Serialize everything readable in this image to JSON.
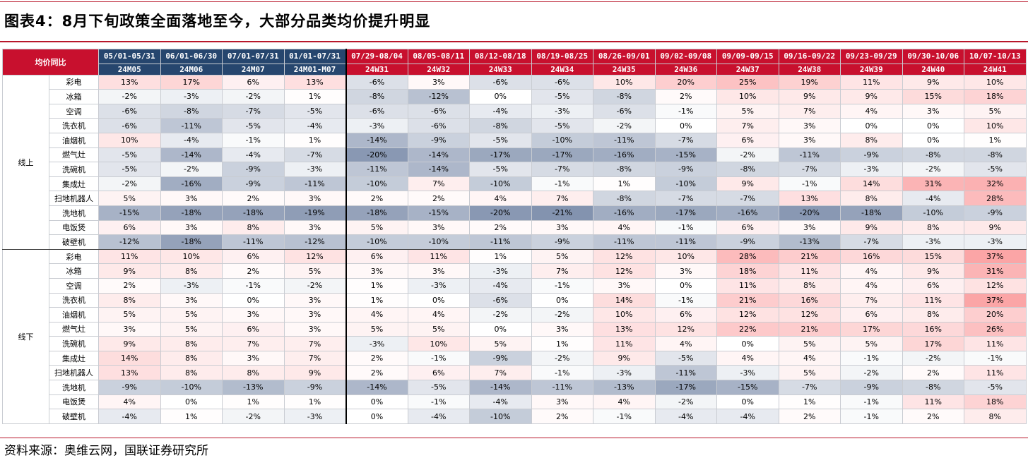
{
  "title": "图表4：8月下旬政策全面落地至今，大部分品类均价提升明显",
  "source": "资料来源：奥维云网，国联证券研究所",
  "table": {
    "corner_label": "均价同比",
    "periods": [
      {
        "range": "05/01-05/31",
        "code": "24M05",
        "group": "month"
      },
      {
        "range": "06/01-06/30",
        "code": "24M06",
        "group": "month"
      },
      {
        "range": "07/01-07/31",
        "code": "24M07",
        "group": "month"
      },
      {
        "range": "01/01-07/31",
        "code": "24M01-M07",
        "group": "month"
      },
      {
        "range": "07/29-08/04",
        "code": "24W31",
        "group": "week"
      },
      {
        "range": "08/05-08/11",
        "code": "24W32",
        "group": "week"
      },
      {
        "range": "08/12-08/18",
        "code": "24W33",
        "group": "week"
      },
      {
        "range": "08/19-08/25",
        "code": "24W34",
        "group": "week"
      },
      {
        "range": "08/26-09/01",
        "code": "24W35",
        "group": "week"
      },
      {
        "range": "09/02-09/08",
        "code": "24W36",
        "group": "week"
      },
      {
        "range": "09/09-09/15",
        "code": "24W37",
        "group": "week"
      },
      {
        "range": "09/16-09/22",
        "code": "24W38",
        "group": "week"
      },
      {
        "range": "09/23-09/29",
        "code": "24W39",
        "group": "week"
      },
      {
        "range": "09/30-10/06",
        "code": "24W40",
        "group": "week"
      },
      {
        "range": "10/07-10/13",
        "code": "24W41",
        "group": "week"
      }
    ],
    "sections": [
      {
        "region": "线上",
        "rows": [
          {
            "category": "彩电",
            "values": [
              13,
              17,
              6,
              13,
              -6,
              3,
              -6,
              -6,
              10,
              20,
              25,
              19,
              11,
              9,
              10
            ]
          },
          {
            "category": "冰箱",
            "values": [
              -2,
              -3,
              -2,
              1,
              -8,
              -12,
              0,
              -5,
              -8,
              2,
              10,
              9,
              9,
              15,
              18
            ]
          },
          {
            "category": "空调",
            "values": [
              -6,
              -8,
              -7,
              -5,
              -6,
              -6,
              -4,
              -3,
              -6,
              -1,
              5,
              7,
              4,
              3,
              5
            ]
          },
          {
            "category": "洗衣机",
            "values": [
              -6,
              -11,
              -5,
              -4,
              -3,
              -6,
              -8,
              -5,
              -2,
              0,
              7,
              3,
              0,
              0,
              10
            ]
          },
          {
            "category": "油烟机",
            "values": [
              10,
              -4,
              -1,
              1,
              -14,
              -9,
              -5,
              -10,
              -11,
              -7,
              6,
              3,
              8,
              0,
              1
            ]
          },
          {
            "category": "燃气灶",
            "values": [
              -5,
              -14,
              -4,
              -7,
              -20,
              -14,
              -17,
              -17,
              -16,
              -15,
              -2,
              -11,
              -9,
              -8,
              -8
            ]
          },
          {
            "category": "洗碗机",
            "values": [
              -5,
              -2,
              -9,
              -3,
              -11,
              -14,
              -5,
              -7,
              -8,
              -9,
              -8,
              -7,
              -3,
              -2,
              -5
            ]
          },
          {
            "category": "集成灶",
            "values": [
              -2,
              -16,
              -9,
              -11,
              -10,
              7,
              -10,
              -1,
              1,
              -10,
              9,
              -1,
              14,
              31,
              32
            ]
          },
          {
            "category": "扫地机器人",
            "values": [
              5,
              3,
              2,
              3,
              2,
              2,
              4,
              7,
              -8,
              -7,
              -7,
              13,
              8,
              -4,
              28
            ]
          },
          {
            "category": "洗地机",
            "values": [
              -15,
              -18,
              -18,
              -19,
              -18,
              -15,
              -20,
              -21,
              -16,
              -17,
              -16,
              -20,
              -18,
              -10,
              -9
            ]
          },
          {
            "category": "电饭煲",
            "values": [
              6,
              3,
              8,
              3,
              5,
              3,
              2,
              3,
              4,
              -1,
              6,
              3,
              9,
              8,
              9
            ]
          },
          {
            "category": "破壁机",
            "values": [
              -12,
              -18,
              -11,
              -12,
              -10,
              -10,
              -11,
              -9,
              -11,
              -11,
              -9,
              -13,
              -7,
              -3,
              -3
            ]
          }
        ]
      },
      {
        "region": "线下",
        "rows": [
          {
            "category": "彩电",
            "values": [
              11,
              10,
              6,
              12,
              6,
              11,
              1,
              5,
              12,
              10,
              28,
              21,
              16,
              15,
              37
            ]
          },
          {
            "category": "冰箱",
            "values": [
              9,
              8,
              2,
              5,
              3,
              3,
              -3,
              7,
              12,
              3,
              18,
              11,
              4,
              9,
              31
            ]
          },
          {
            "category": "空调",
            "values": [
              2,
              -3,
              -1,
              -2,
              1,
              -3,
              -4,
              -1,
              3,
              0,
              11,
              8,
              4,
              6,
              12
            ]
          },
          {
            "category": "洗衣机",
            "values": [
              8,
              3,
              0,
              3,
              1,
              0,
              -6,
              0,
              14,
              -1,
              21,
              16,
              7,
              11,
              37
            ]
          },
          {
            "category": "油烟机",
            "values": [
              5,
              5,
              3,
              3,
              4,
              4,
              -2,
              -2,
              10,
              6,
              12,
              12,
              6,
              8,
              20
            ]
          },
          {
            "category": "燃气灶",
            "values": [
              3,
              5,
              6,
              3,
              5,
              5,
              0,
              3,
              13,
              12,
              22,
              21,
              17,
              16,
              26
            ]
          },
          {
            "category": "洗碗机",
            "values": [
              9,
              8,
              7,
              7,
              -3,
              10,
              5,
              1,
              11,
              4,
              0,
              5,
              5,
              17,
              11
            ]
          },
          {
            "category": "集成灶",
            "values": [
              14,
              8,
              3,
              7,
              2,
              -1,
              -9,
              -2,
              9,
              -5,
              4,
              4,
              -1,
              -2,
              -1
            ]
          },
          {
            "category": "扫地机器人",
            "values": [
              13,
              8,
              8,
              9,
              2,
              6,
              7,
              -1,
              -3,
              -11,
              -3,
              5,
              -2,
              2,
              11
            ]
          },
          {
            "category": "洗地机",
            "values": [
              -9,
              -10,
              -13,
              -9,
              -14,
              -5,
              -14,
              -11,
              -13,
              -17,
              -15,
              -7,
              -9,
              -8,
              -5
            ]
          },
          {
            "category": "电饭煲",
            "values": [
              4,
              0,
              1,
              1,
              0,
              -1,
              -4,
              3,
              4,
              -2,
              0,
              1,
              -1,
              11,
              18
            ]
          },
          {
            "category": "破壁机",
            "values": [
              -4,
              1,
              -2,
              -3,
              0,
              -4,
              -10,
              2,
              -1,
              -4,
              -4,
              2,
              -1,
              2,
              8
            ]
          }
        ]
      }
    ],
    "value_suffix": "%",
    "colors": {
      "header_red": "#c8102e",
      "header_blue": "#26466e",
      "positive": "#f8696b",
      "negative": "#5a6f94",
      "accent_rule": "#b8172a"
    }
  }
}
